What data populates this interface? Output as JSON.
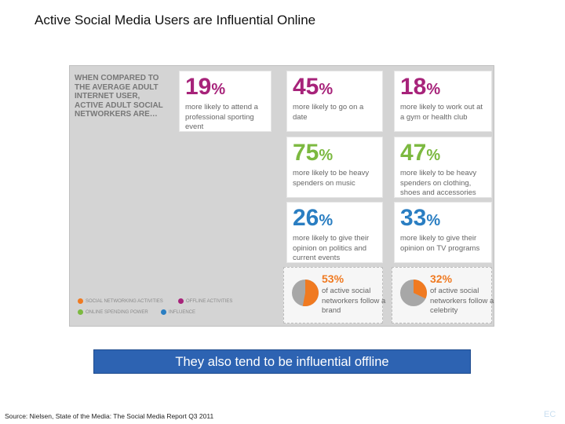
{
  "slide": {
    "title": "Active Social Media Users are Influential Online",
    "banner": "They also tend to be influential offline",
    "source": "Source: Nielsen, State of the Media: The Social Media Report Q3 2011",
    "page_mark": "EC"
  },
  "infographic": {
    "intro": "WHEN COMPARED TO THE AVERAGE ADULT INTERNET USER, ACTIVE ADULT SOCIAL NETWORKERS ARE…",
    "cards": [
      {
        "value": "19",
        "sign": "%",
        "text": "more likely to attend a professional sporting event",
        "category": "purple"
      },
      {
        "value": "45",
        "sign": "%",
        "text": "more likely to go on a date",
        "category": "purple"
      },
      {
        "value": "18",
        "sign": "%",
        "text": "more likely to work out at a gym or health club",
        "category": "purple"
      },
      {
        "value": "75",
        "sign": "%",
        "text": "more likely to be heavy spenders on music",
        "category": "green"
      },
      {
        "value": "47",
        "sign": "%",
        "text": "more likely to be heavy spenders on clothing, shoes and accessories",
        "category": "green"
      },
      {
        "value": "26",
        "sign": "%",
        "text": "more likely to give their opinion on politics and current events",
        "category": "blue"
      },
      {
        "value": "33",
        "sign": "%",
        "text": "more likely to give their opinion on TV programs",
        "category": "blue"
      }
    ],
    "pies": [
      {
        "pct_label": "53%",
        "fraction": 0.53,
        "text": "of active social networkers follow a brand"
      },
      {
        "pct_label": "32%",
        "fraction": 0.32,
        "text": "of active social networkers follow a celebrity"
      }
    ],
    "legend": [
      {
        "label": "SOCIAL NETWORKING ACTIVITIES",
        "color": "#f07a21"
      },
      {
        "label": "OFFLINE ACTIVITIES",
        "color": "#a7237a"
      },
      {
        "label": "ONLINE SPENDING POWER",
        "color": "#7cb940"
      },
      {
        "label": "INFLUENCE",
        "color": "#2a7ec2"
      }
    ]
  }
}
